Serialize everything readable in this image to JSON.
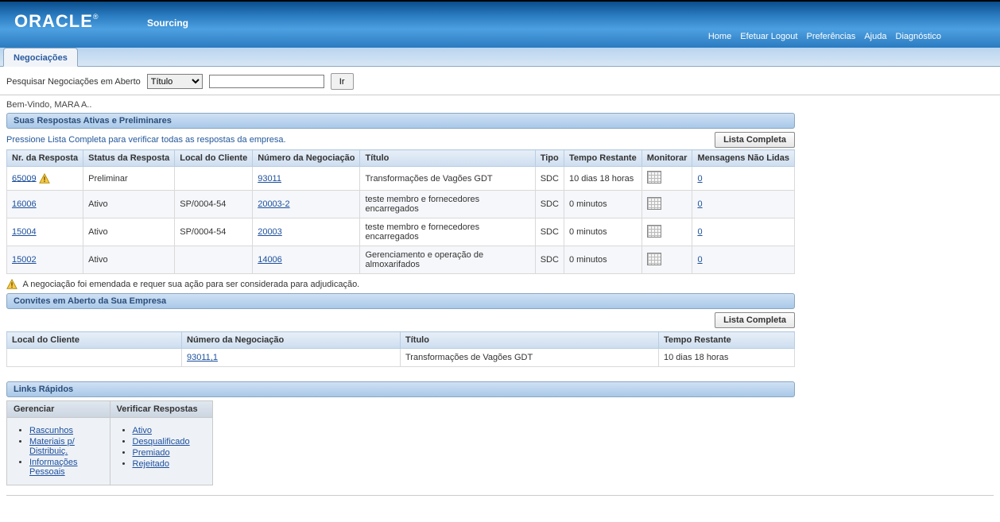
{
  "brand": "ORACLE",
  "brand_reg": "®",
  "app_title": "Sourcing",
  "top_nav": {
    "home": "Home",
    "logout": "Efetuar Logout",
    "prefs": "Preferências",
    "help": "Ajuda",
    "diag": "Diagnóstico"
  },
  "tab_label": "Negociações",
  "search": {
    "label": "Pesquisar Negociações em Aberto",
    "option": "Título",
    "value": "",
    "go": "Ir"
  },
  "welcome": "Bem-Vindo, MARA A..",
  "section1_title": "Suas Respostas Ativas e Preliminares",
  "section1_instruction": "Pressione Lista Completa para verificar todas as respostas da empresa.",
  "full_list_btn": "Lista Completa",
  "table1": {
    "headers": {
      "resp_no": "Nr. da Resposta",
      "resp_status": "Status da Resposta",
      "client_loc": "Local do Cliente",
      "neg_no": "Número da Negociação",
      "title": "Título",
      "type": "Tipo",
      "time_left": "Tempo Restante",
      "monitor": "Monitorar",
      "unread": "Mensagens Não Lidas"
    },
    "rows": [
      {
        "resp_no": "65009",
        "warn": true,
        "status": "Preliminar",
        "client": "",
        "neg": "93011",
        "title": "Transformações de Vagões GDT",
        "type": "SDC",
        "time": "10 dias 18 horas",
        "unread": "0"
      },
      {
        "resp_no": "16006",
        "warn": false,
        "status": "Ativo",
        "client": "SP/0004-54",
        "neg": "20003-2",
        "title": "teste membro e fornecedores encarregados",
        "type": "SDC",
        "time": "0 minutos",
        "unread": "0"
      },
      {
        "resp_no": "15004",
        "warn": false,
        "status": "Ativo",
        "client": "SP/0004-54",
        "neg": "20003",
        "title": "teste membro e fornecedores encarregados",
        "type": "SDC",
        "time": "0 minutos",
        "unread": "0"
      },
      {
        "resp_no": "15002",
        "warn": false,
        "status": "Ativo",
        "client": "",
        "neg": "14006",
        "title": "Gerenciamento e operação de almoxarifados",
        "type": "SDC",
        "time": "0 minutos",
        "unread": "0"
      }
    ]
  },
  "footnote": "A negociação foi emendada e requer sua ação para ser considerada para adjudicação.",
  "section2_title": "Convites em Aberto da Sua Empresa",
  "table2": {
    "headers": {
      "client_loc": "Local do Cliente",
      "neg_no": "Número da Negociação",
      "title": "Título",
      "time_left": "Tempo Restante"
    },
    "rows": [
      {
        "client": "",
        "neg": "93011,1",
        "title": "Transformações de Vagões GDT",
        "time": "10 dias 18 horas"
      }
    ]
  },
  "section3_title": "Links Rápidos",
  "quicklinks": {
    "col1_title": "Gerenciar",
    "col1": {
      "drafts": "Rascunhos",
      "materials": "Materiais p/ Distribuiç.",
      "personal": "Informações Pessoais"
    },
    "col2_title": "Verificar Respostas",
    "col2": {
      "active": "Ativo",
      "disq": "Desqualificado",
      "awarded": "Premiado",
      "rejected": "Rejeitado"
    }
  },
  "colors": {
    "header_grad_top": "#0a4d8c",
    "header_grad_bot": "#2a7bc0",
    "section_bar_top": "#cfe1f4",
    "section_bar_bot": "#a9c8e8",
    "link": "#1c4f9c"
  }
}
